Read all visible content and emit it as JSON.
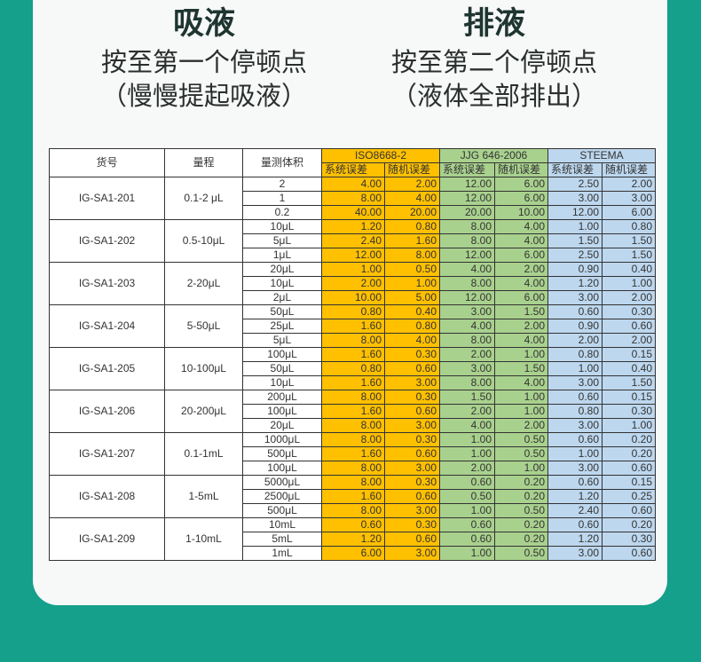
{
  "left": {
    "title": "吸液",
    "line1": "按至第一个停顿点",
    "line2": "（慢慢提起吸液）"
  },
  "right": {
    "title": "排液",
    "line1": "按至第二个停顿点",
    "line2": "（液体全部排出）"
  },
  "colors": {
    "background": "#15a08b",
    "iso": "#ffc000",
    "jjg": "#a9d18e",
    "steema": "#bdd7ee"
  },
  "table": {
    "headers": {
      "model": "货号",
      "range": "量程",
      "volume": "量测体积",
      "standards": [
        "ISO8668-2",
        "JJG 646-2006",
        "STEEMA"
      ],
      "sub": [
        "系统误差",
        "随机误差"
      ]
    },
    "groups": [
      {
        "model": "IG-SA1-201",
        "range": "0.1-2 μL",
        "rows": [
          [
            "2",
            "4.00",
            "2.00",
            "12.00",
            "6.00",
            "2.50",
            "2.00"
          ],
          [
            "1",
            "8.00",
            "4.00",
            "12.00",
            "6.00",
            "3.00",
            "3.00"
          ],
          [
            "0.2",
            "40.00",
            "20.00",
            "20.00",
            "10.00",
            "12.00",
            "6.00"
          ]
        ]
      },
      {
        "model": "IG-SA1-202",
        "range": "0.5-10μL",
        "rows": [
          [
            "10μL",
            "1.20",
            "0.80",
            "8.00",
            "4.00",
            "1.00",
            "0.80"
          ],
          [
            "5μL",
            "2.40",
            "1.60",
            "8.00",
            "4.00",
            "1.50",
            "1.50"
          ],
          [
            "1μL",
            "12.00",
            "8.00",
            "12.00",
            "6.00",
            "2.50",
            "1.50"
          ]
        ]
      },
      {
        "model": "IG-SA1-203",
        "range": "2-20μL",
        "rows": [
          [
            "20μL",
            "1.00",
            "0.50",
            "4.00",
            "2.00",
            "0.90",
            "0.40"
          ],
          [
            "10μL",
            "2.00",
            "1.00",
            "8.00",
            "4.00",
            "1.20",
            "1.00"
          ],
          [
            "2μL",
            "10.00",
            "5.00",
            "12.00",
            "6.00",
            "3.00",
            "2.00"
          ]
        ]
      },
      {
        "model": "IG-SA1-204",
        "range": "5-50μL",
        "rows": [
          [
            "50μL",
            "0.80",
            "0.40",
            "3.00",
            "1.50",
            "0.60",
            "0.30"
          ],
          [
            "25μL",
            "1.60",
            "0.80",
            "4.00",
            "2.00",
            "0.90",
            "0.60"
          ],
          [
            "5μL",
            "8.00",
            "4.00",
            "8.00",
            "4.00",
            "2.00",
            "2.00"
          ]
        ]
      },
      {
        "model": "IG-SA1-205",
        "range": "10-100μL",
        "rows": [
          [
            "100μL",
            "1.60",
            "0.30",
            "2.00",
            "1.00",
            "0.80",
            "0.15"
          ],
          [
            "50μL",
            "0.80",
            "0.60",
            "3.00",
            "1.50",
            "1.00",
            "0.40"
          ],
          [
            "10μL",
            "1.60",
            "3.00",
            "8.00",
            "4.00",
            "3.00",
            "1.50"
          ]
        ]
      },
      {
        "model": "IG-SA1-206",
        "range": "20-200μL",
        "rows": [
          [
            "200μL",
            "8.00",
            "0.30",
            "1.50",
            "1.00",
            "0.60",
            "0.15"
          ],
          [
            "100μL",
            "1.60",
            "0.60",
            "2.00",
            "1.00",
            "0.80",
            "0.30"
          ],
          [
            "20μL",
            "8.00",
            "3.00",
            "4.00",
            "2.00",
            "3.00",
            "1.00"
          ]
        ]
      },
      {
        "model": "IG-SA1-207",
        "range": "0.1-1mL",
        "rows": [
          [
            "1000μL",
            "8.00",
            "0.30",
            "1.00",
            "0.50",
            "0.60",
            "0.20"
          ],
          [
            "500μL",
            "1.60",
            "0.60",
            "1.00",
            "0.50",
            "1.00",
            "0.20"
          ],
          [
            "100μL",
            "8.00",
            "3.00",
            "2.00",
            "1.00",
            "3.00",
            "0.60"
          ]
        ]
      },
      {
        "model": "IG-SA1-208",
        "range": "1-5mL",
        "rows": [
          [
            "5000μL",
            "8.00",
            "0.30",
            "0.60",
            "0.20",
            "0.60",
            "0.15"
          ],
          [
            "2500μL",
            "1.60",
            "0.60",
            "0.50",
            "0.20",
            "1.20",
            "0.25"
          ],
          [
            "500μL",
            "8.00",
            "3.00",
            "1.00",
            "0.50",
            "2.40",
            "0.60"
          ]
        ]
      },
      {
        "model": "IG-SA1-209",
        "range": "1-10mL",
        "rows": [
          [
            "10mL",
            "0.60",
            "0.30",
            "0.60",
            "0.20",
            "0.60",
            "0.20"
          ],
          [
            "5mL",
            "1.20",
            "0.60",
            "0.60",
            "0.20",
            "1.20",
            "0.30"
          ],
          [
            "1mL",
            "6.00",
            "3.00",
            "1.00",
            "0.50",
            "3.00",
            "0.60"
          ]
        ]
      }
    ]
  }
}
